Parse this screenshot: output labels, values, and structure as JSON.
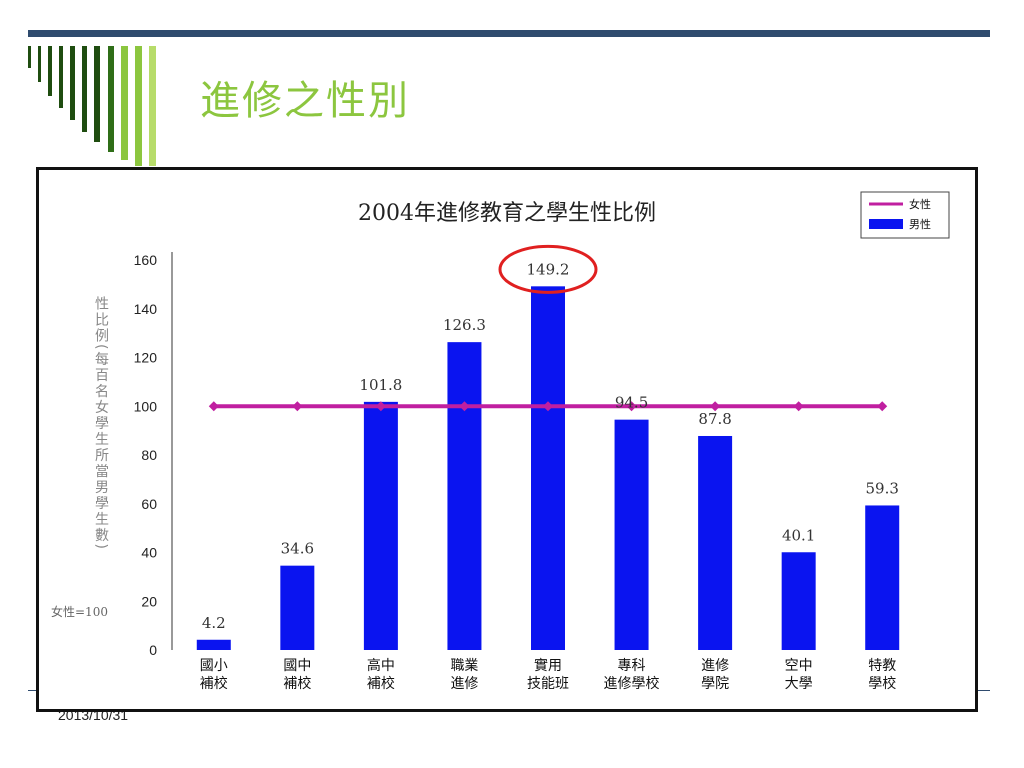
{
  "slide": {
    "title": "進修之性別",
    "footer_date": "2013/10/31"
  },
  "colors": {
    "top_bar": "#2f4b6e",
    "title": "#8cc63f",
    "bar": "#0a14f0",
    "female_line": "#c01fa0",
    "highlight": "#e02020"
  },
  "chart_data": {
    "type": "bar",
    "title": "2004年進修教育之學生性比例",
    "ylabel": "性比例(每百名女學生所當男學生數)",
    "baseline_note": "女性=100",
    "ylim": [
      0,
      160
    ],
    "yticks": [
      0,
      20,
      40,
      60,
      80,
      100,
      120,
      140,
      160
    ],
    "categories": [
      [
        "國小",
        "補校"
      ],
      [
        "國中",
        "補校"
      ],
      [
        "高中",
        "補校"
      ],
      [
        "職業",
        "進修"
      ],
      [
        "實用",
        "技能班"
      ],
      [
        "專科",
        "進修學校"
      ],
      [
        "進修",
        "學院"
      ],
      [
        "空中",
        "大學"
      ],
      [
        "特教",
        "學校"
      ]
    ],
    "series": [
      {
        "name": "男性",
        "type": "bar",
        "values": [
          4.2,
          34.6,
          101.8,
          126.3,
          149.2,
          94.5,
          87.8,
          40.1,
          59.3
        ]
      },
      {
        "name": "女性",
        "type": "line",
        "values": [
          100,
          100,
          100,
          100,
          100,
          100,
          100,
          100,
          100
        ]
      }
    ],
    "data_labels": [
      "4.2",
      "34.6",
      "101.8",
      "126.3",
      "149.2",
      "94.5",
      "87.8",
      "40.1",
      "59.3"
    ],
    "highlight_index": 4,
    "legend": {
      "position": "top-right",
      "items": [
        "女性",
        "男性"
      ]
    },
    "grid": false
  }
}
